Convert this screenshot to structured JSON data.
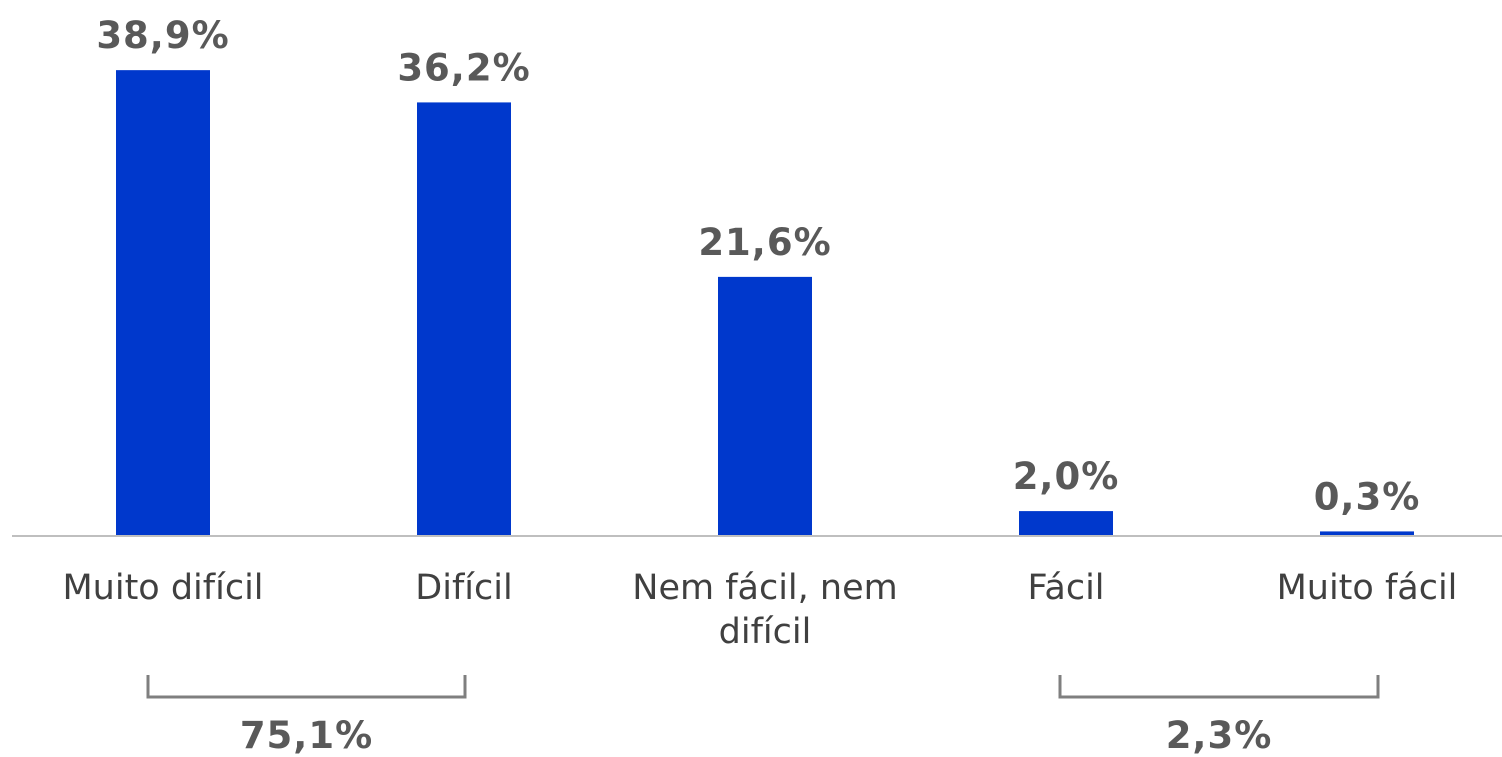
{
  "chart_data": {
    "type": "bar",
    "categories": [
      "Muito difícil",
      "Difícil",
      "Nem fácil, nem difícil",
      "Fácil",
      "Muito fácil"
    ],
    "values": [
      38.9,
      36.2,
      21.6,
      2.0,
      0.3
    ],
    "value_labels": [
      "38,9%",
      "36,2%",
      "21,6%",
      "2,0%",
      "0,3%"
    ],
    "color": "#0038cc",
    "annotations": [
      {
        "value": 75.1,
        "label": "75,1%"
      },
      {
        "value": 2.3,
        "label": "2,3%"
      }
    ]
  }
}
